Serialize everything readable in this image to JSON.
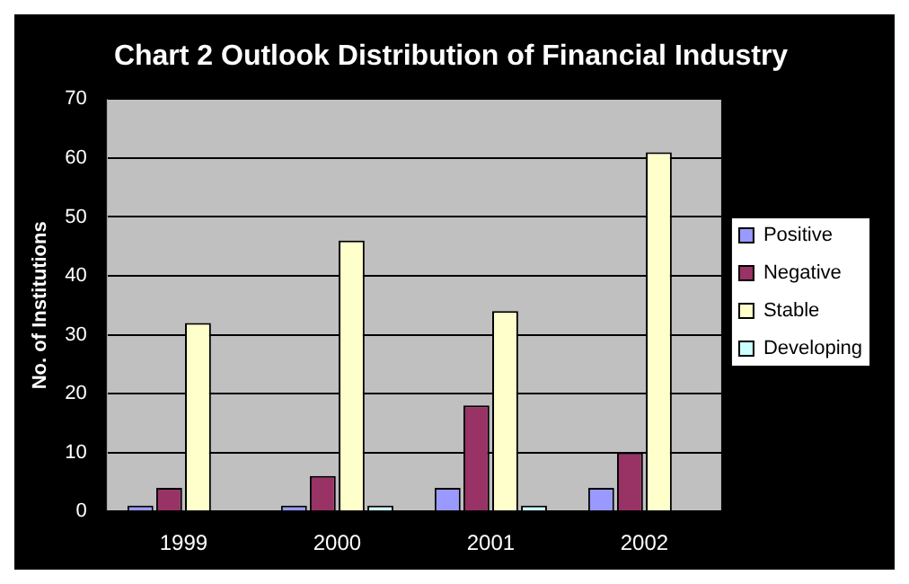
{
  "chart_data": {
    "type": "bar",
    "title": "Chart 2 Outlook Distribution of Financial Industry",
    "ylabel": "No. of Institutions",
    "categories": [
      "1999",
      "2000",
      "2001",
      "2002"
    ],
    "series": [
      {
        "name": "Positive",
        "color": "#9999ff",
        "values": [
          1,
          1,
          4,
          4
        ]
      },
      {
        "name": "Negative",
        "color": "#993366",
        "values": [
          4,
          6,
          18,
          10
        ]
      },
      {
        "name": "Stable",
        "color": "#ffffcc",
        "values": [
          32,
          46,
          34,
          61
        ]
      },
      {
        "name": "Developing",
        "color": "#ccffff",
        "values": [
          0,
          1,
          1,
          0
        ]
      }
    ],
    "ylim": [
      0,
      70
    ],
    "yticks": [
      0,
      10,
      20,
      30,
      40,
      50,
      60,
      70
    ],
    "grid": "y",
    "legend": "right"
  }
}
